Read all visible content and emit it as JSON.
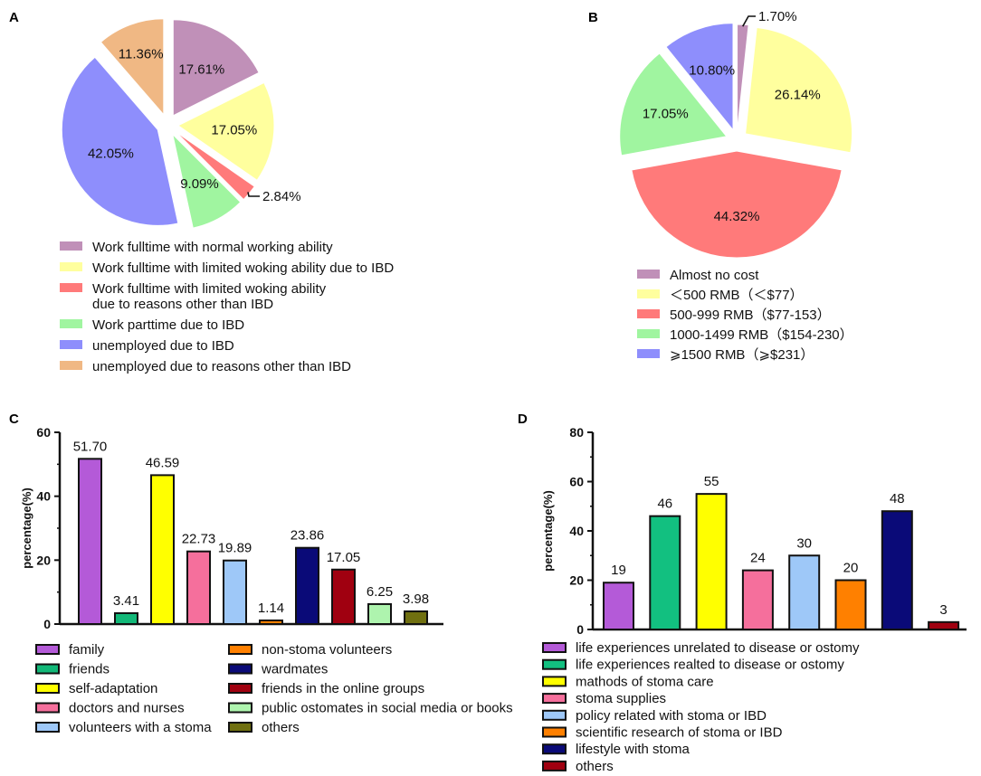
{
  "chart_data": [
    {
      "panel": "A",
      "type": "pie",
      "labels": [
        "Work fulltime with normal working ability",
        "Work fulltime with limited woking ability due to IBD",
        "Work fulltime with limited woking ability due to reasons other than IBD",
        "Work parttime due to  IBD",
        "unemployed due to IBD",
        "unemployed due to reasons other than IBD"
      ],
      "legend_lines": [
        [
          "Work fulltime with normal working ability"
        ],
        [
          "Work fulltime with limited woking ability due to IBD"
        ],
        [
          "Work fulltime with limited woking ability",
          " due to reasons other than IBD"
        ],
        [
          "Work parttime due to  IBD"
        ],
        [
          "unemployed due to IBD"
        ],
        [
          "unemployed due to reasons other than IBD"
        ]
      ],
      "values": [
        17.61,
        17.05,
        2.84,
        9.09,
        42.05,
        11.36
      ],
      "value_labels": [
        "17.61%",
        "17.05%",
        "2.84%",
        "9.09%",
        "42.05%",
        "11.36%"
      ],
      "colors": [
        "#c090b8",
        "#ffff9e",
        "#ff7a7a",
        "#a0f5a0",
        "#8e8efc",
        "#f0b884"
      ]
    },
    {
      "panel": "B",
      "type": "pie",
      "labels": [
        "Almost no cost",
        "＜500 RMB（＜$77）",
        "500-999 RMB（$77-153）",
        "1000-1499 RMB（$154-230）",
        "⩾1500 RMB（⩾$231）"
      ],
      "values": [
        1.7,
        26.14,
        44.32,
        17.05,
        10.8
      ],
      "value_labels": [
        "1.70%",
        "26.14%",
        "44.32%",
        "17.05%",
        "10.80%"
      ],
      "colors": [
        "#c090b8",
        "#ffff9e",
        "#ff7a7a",
        "#a0f5a0",
        "#8e8efc"
      ]
    },
    {
      "panel": "C",
      "type": "bar",
      "categories": [
        "family",
        "friends",
        "self-adaptation",
        "doctors and nurses",
        "volunteers with a stoma",
        "non-stoma volunteers",
        "wardmates",
        "friends in the online groups",
        "public ostomates in social media or books",
        "others"
      ],
      "values": [
        51.7,
        3.41,
        46.59,
        22.73,
        19.89,
        1.14,
        23.86,
        17.05,
        6.25,
        3.98
      ],
      "value_labels": [
        "51.70",
        "3.41",
        "46.59",
        "22.73",
        "19.89",
        "1.14",
        "23.86",
        "17.05",
        "6.25",
        "3.98"
      ],
      "colors": [
        "#b45ad8",
        "#12b878",
        "#ffff00",
        "#f56f9c",
        "#9ec8f8",
        "#ff8000",
        "#0a0a78",
        "#a00010",
        "#aef4ae",
        "#707010"
      ],
      "ylabel": "percentage(%)",
      "ylim": [
        0,
        60
      ],
      "yticks": [
        "0",
        "20",
        "40",
        "60"
      ]
    },
    {
      "panel": "D",
      "type": "bar",
      "categories": [
        "life experiences unrelated to disease or ostomy",
        "life experiences realted to disease or ostomy",
        "mathods of stoma care",
        "stoma supplies",
        "policy related with stoma or IBD",
        "scientific research of stoma or IBD",
        "lifestyle with stoma",
        "others"
      ],
      "values": [
        19,
        46,
        55,
        24,
        30,
        20,
        48,
        3
      ],
      "value_labels": [
        "19",
        "46",
        "55",
        "24",
        "30",
        "20",
        "48",
        "3"
      ],
      "colors": [
        "#b45ad8",
        "#12c080",
        "#ffff00",
        "#f56f9c",
        "#9ec8f8",
        "#ff8000",
        "#0a0a78",
        "#a00010"
      ],
      "ylabel": "percentage(%)",
      "ylim": [
        0,
        80
      ],
      "yticks": [
        "0",
        "20",
        "40",
        "60",
        "80"
      ]
    }
  ],
  "panel_letters": [
    "A",
    "B",
    "C",
    "D"
  ]
}
